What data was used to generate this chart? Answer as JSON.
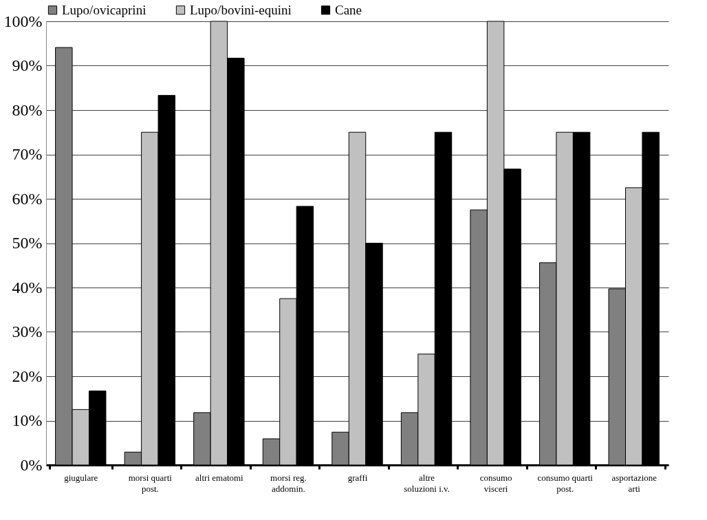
{
  "chart_data": {
    "type": "bar",
    "categories": [
      "giugulare",
      "morsi quarti post.",
      "altri ematomi",
      "morsi reg. addomin.",
      "graffi",
      "altre soluzioni i.v.",
      "consumo visceri",
      "consumo quarti post.",
      "asportazione arti"
    ],
    "series": [
      {
        "name": "Lupo/ovicaprini",
        "color": "#808080",
        "values": [
          94.1,
          2.9,
          11.8,
          5.9,
          7.4,
          11.8,
          57.5,
          45.6,
          39.7
        ]
      },
      {
        "name": "Lupo/bovini-equini",
        "color": "#c0c0c0",
        "values": [
          12.5,
          75,
          100,
          37.5,
          75,
          25,
          100,
          75,
          62.5
        ]
      },
      {
        "name": "Cane",
        "color": "#000000",
        "values": [
          16.7,
          83.3,
          91.7,
          58.3,
          50,
          75,
          66.7,
          75,
          75
        ]
      }
    ],
    "ylim": [
      0,
      100
    ],
    "yticks": [
      {
        "value": 0,
        "label": "0%"
      },
      {
        "value": 10,
        "label": "10%"
      },
      {
        "value": 20,
        "label": "20%"
      },
      {
        "value": 30,
        "label": "30%"
      },
      {
        "value": 40,
        "label": "40%"
      },
      {
        "value": 50,
        "label": "50%"
      },
      {
        "value": 60,
        "label": "60%"
      },
      {
        "value": 70,
        "label": "70%"
      },
      {
        "value": 80,
        "label": "80%"
      },
      {
        "value": 90,
        "label": "90%"
      },
      {
        "value": 100,
        "label": "100%"
      }
    ],
    "grid": "y",
    "legend": "top"
  }
}
